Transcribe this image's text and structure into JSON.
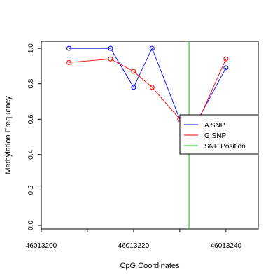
{
  "chart_data": {
    "type": "line",
    "title": "",
    "xlabel": "CpG Coordinates",
    "ylabel": "Methylation Frequency",
    "xlim": [
      46013200,
      46013247
    ],
    "ylim": [
      -0.02,
      1.04
    ],
    "x_ticks": [
      46013200,
      46013210,
      46013220,
      46013230,
      46013240
    ],
    "x_tick_labels": [
      "46013200",
      "46013220",
      "46013240"
    ],
    "x_tick_label_values": [
      46013200,
      46013220,
      46013240
    ],
    "y_ticks": [
      0.0,
      0.2,
      0.4,
      0.6,
      0.8,
      1.0
    ],
    "y_tick_labels": [
      "0.0",
      "0.2",
      "0.4",
      "0.6",
      "0.8",
      "1.0"
    ],
    "grid": false,
    "legend_position": "right",
    "series": [
      {
        "name": "A SNP",
        "color": "#0000ff",
        "x": [
          46013206,
          46013215,
          46013220,
          46013224,
          46013230,
          46013234,
          46013240
        ],
        "y": [
          1.0,
          1.0,
          0.78,
          1.0,
          0.6,
          0.6,
          0.89
        ]
      },
      {
        "name": "G SNP",
        "color": "#ff0000",
        "x": [
          46013206,
          46013215,
          46013220,
          46013224,
          46013230,
          46013234,
          46013240
        ],
        "y": [
          0.92,
          0.94,
          0.87,
          0.78,
          0.6,
          0.59,
          0.94
        ]
      }
    ],
    "snp_position": {
      "name": "SNP Position",
      "x": 46013232,
      "color": "#00cc00"
    }
  }
}
